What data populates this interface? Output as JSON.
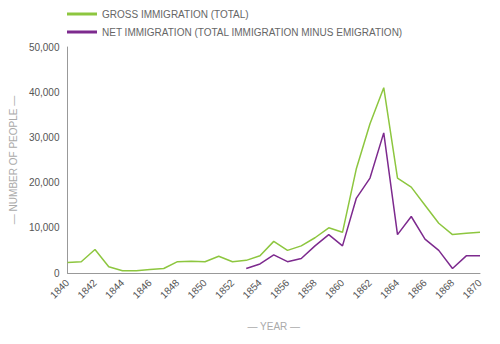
{
  "chart_data": {
    "type": "line",
    "x": [
      1840,
      1841,
      1842,
      1843,
      1844,
      1845,
      1846,
      1847,
      1848,
      1849,
      1850,
      1851,
      1852,
      1853,
      1854,
      1855,
      1856,
      1857,
      1858,
      1859,
      1860,
      1861,
      1862,
      1863,
      1864,
      1865,
      1866,
      1867,
      1868,
      1869,
      1870
    ],
    "series": [
      {
        "name": "GROSS IMMIGRATION (TOTAL)",
        "color": "#8dc63f",
        "values": [
          2300,
          2500,
          5200,
          1400,
          500,
          500,
          800,
          1000,
          2500,
          2600,
          2500,
          3700,
          2500,
          2800,
          3800,
          7000,
          5000,
          6000,
          7800,
          10000,
          9000,
          23000,
          33000,
          41000,
          21000,
          19000,
          15000,
          11000,
          8500,
          8800,
          9000
        ]
      },
      {
        "name": "NET IMMIGRATION (TOTAL IMMIGRATION MINUS EMIGRATION)",
        "color": "#7d2a8e",
        "values": [
          null,
          null,
          null,
          null,
          null,
          null,
          null,
          null,
          null,
          null,
          null,
          null,
          null,
          1000,
          2000,
          4000,
          2500,
          3200,
          6000,
          8500,
          6000,
          16500,
          21000,
          31000,
          8500,
          12500,
          7500,
          5000,
          1000,
          3800,
          3800
        ]
      }
    ],
    "x_label": "— YEAR —",
    "y_label": "— NUMBER OF PEOPLE —",
    "xlim": [
      1840,
      1870
    ],
    "xticks": [
      1840,
      1842,
      1844,
      1846,
      1848,
      1850,
      1852,
      1854,
      1856,
      1858,
      1860,
      1862,
      1864,
      1866,
      1868,
      1870
    ],
    "ylim": [
      0,
      50000
    ],
    "yticks": [
      0,
      {
        "value": 10000,
        "label": "10,000"
      },
      {
        "value": 20000,
        "label": "20,000"
      },
      {
        "value": 30000,
        "label": "30,000"
      },
      {
        "value": 40000,
        "label": "40,000"
      },
      {
        "value": 50000,
        "label": "50,000"
      }
    ],
    "grid": false,
    "legend": "top-left"
  }
}
